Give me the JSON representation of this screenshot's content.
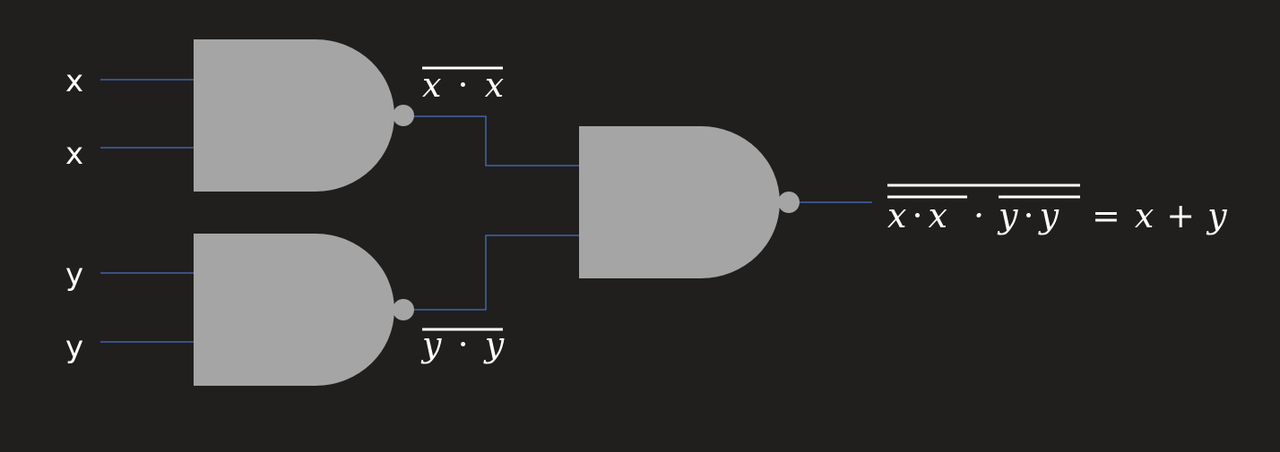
{
  "inputs": {
    "gate1_top": "x",
    "gate1_bottom": "x",
    "gate2_top": "y",
    "gate2_bottom": "y"
  },
  "labels": {
    "gate1_output": {
      "left": "x",
      "dot": "·",
      "right": "x"
    },
    "gate2_output": {
      "left": "y",
      "dot": "·",
      "right": "y"
    },
    "result": {
      "a1": "x",
      "dot1": "·",
      "a2": "x",
      "dot_mid": "·",
      "b1": "y",
      "dot2": "·",
      "b2": "y",
      "equals": "=",
      "r1": "x",
      "plus": "+",
      "r2": "y"
    }
  },
  "colors": {
    "background": "#201f1e",
    "gate": "#a5a5a5",
    "wire": "#4a6fc0",
    "text": "#ffffff"
  },
  "gates": [
    "NAND",
    "NAND",
    "NAND"
  ]
}
